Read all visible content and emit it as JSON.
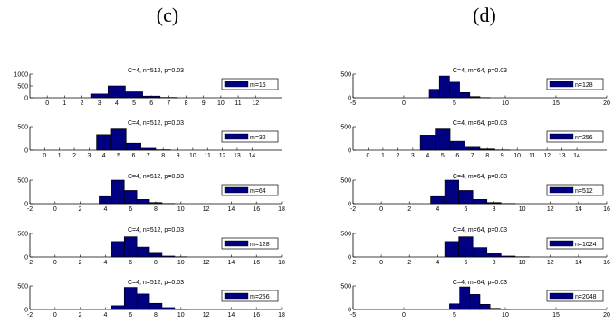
{
  "panel_labels": [
    "(c)",
    "(d)"
  ],
  "chart_data": [
    {
      "type": "bar",
      "group": "(c)",
      "title": "C=4, n=512, p=0.03",
      "legend": "m=16",
      "xlim": [
        -1,
        13.5
      ],
      "ylim": [
        0,
        1000
      ],
      "yticks": [
        "1000",
        "500",
        "0"
      ],
      "yticks_v": [
        1000,
        500,
        0
      ],
      "xticks": [
        "0",
        "1",
        "2",
        "3",
        "4",
        "5",
        "6",
        "7",
        "8",
        "9",
        "10",
        "11",
        "12"
      ],
      "xticks_v": [
        0,
        1,
        2,
        3,
        4,
        5,
        6,
        7,
        8,
        9,
        10,
        11,
        12
      ],
      "bin_width": 1,
      "bins": [
        {
          "x": 3,
          "y": 160
        },
        {
          "x": 4,
          "y": 500
        },
        {
          "x": 5,
          "y": 250
        },
        {
          "x": 6,
          "y": 70
        },
        {
          "x": 7,
          "y": 15
        }
      ]
    },
    {
      "type": "bar",
      "group": "(c)",
      "title": "C=4, n=512, p=0.03",
      "legend": "m=32",
      "xlim": [
        -1,
        16
      ],
      "ylim": [
        0,
        500
      ],
      "yticks": [
        "500",
        "0"
      ],
      "yticks_v": [
        500,
        0
      ],
      "xticks": [
        "0",
        "1",
        "2",
        "3",
        "4",
        "5",
        "6",
        "7",
        "8",
        "9",
        "10",
        "11",
        "12",
        "13",
        "14"
      ],
      "xticks_v": [
        0,
        1,
        2,
        3,
        4,
        5,
        6,
        7,
        8,
        9,
        10,
        11,
        12,
        13,
        14
      ],
      "bin_width": 1,
      "bins": [
        {
          "x": 4,
          "y": 330
        },
        {
          "x": 5,
          "y": 450
        },
        {
          "x": 6,
          "y": 150
        },
        {
          "x": 7,
          "y": 40
        },
        {
          "x": 8,
          "y": 8
        }
      ]
    },
    {
      "type": "bar",
      "group": "(c)",
      "title": "C=4, n=512, p=0.03",
      "legend": "m=64",
      "xlim": [
        -2,
        18
      ],
      "ylim": [
        0,
        500
      ],
      "yticks": [
        "500",
        "0"
      ],
      "yticks_v": [
        500,
        0
      ],
      "xticks": [
        "-2",
        "0",
        "2",
        "4",
        "6",
        "8",
        "10",
        "12",
        "14",
        "16",
        "18"
      ],
      "xticks_v": [
        -2,
        0,
        2,
        4,
        6,
        8,
        10,
        12,
        14,
        16,
        18
      ],
      "bin_width": 1,
      "bins": [
        {
          "x": 4,
          "y": 150
        },
        {
          "x": 5,
          "y": 500
        },
        {
          "x": 6,
          "y": 280
        },
        {
          "x": 7,
          "y": 90
        },
        {
          "x": 8,
          "y": 25
        },
        {
          "x": 9,
          "y": 5
        }
      ]
    },
    {
      "type": "bar",
      "group": "(c)",
      "title": "C=4, n=512, p=0.03",
      "legend": "m=128",
      "xlim": [
        -2,
        18
      ],
      "ylim": [
        0,
        500
      ],
      "yticks": [
        "500",
        "0"
      ],
      "yticks_v": [
        500,
        0
      ],
      "xticks": [
        "-2",
        "0",
        "2",
        "4",
        "6",
        "8",
        "10",
        "12",
        "14",
        "16",
        "18"
      ],
      "xticks_v": [
        -2,
        0,
        2,
        4,
        6,
        8,
        10,
        12,
        14,
        16,
        18
      ],
      "bin_width": 1,
      "bins": [
        {
          "x": 5,
          "y": 330
        },
        {
          "x": 6,
          "y": 430
        },
        {
          "x": 7,
          "y": 210
        },
        {
          "x": 8,
          "y": 80
        },
        {
          "x": 9,
          "y": 20
        },
        {
          "x": 10,
          "y": 5
        }
      ]
    },
    {
      "type": "bar",
      "group": "(c)",
      "title": "C=4, n=512, p=0.03",
      "legend": "m=256",
      "xlim": [
        -2,
        18
      ],
      "ylim": [
        0,
        500
      ],
      "yticks": [
        "500",
        "0"
      ],
      "yticks_v": [
        500,
        0
      ],
      "xticks": [
        "-2",
        "0",
        "2",
        "4",
        "6",
        "8",
        "10",
        "12",
        "14",
        "16",
        "18"
      ],
      "xticks_v": [
        -2,
        0,
        2,
        4,
        6,
        8,
        10,
        12,
        14,
        16,
        18
      ],
      "bin_width": 1,
      "bins": [
        {
          "x": 5,
          "y": 80
        },
        {
          "x": 6,
          "y": 470
        },
        {
          "x": 7,
          "y": 330
        },
        {
          "x": 8,
          "y": 130
        },
        {
          "x": 9,
          "y": 40
        },
        {
          "x": 10,
          "y": 10
        }
      ]
    },
    {
      "type": "bar",
      "group": "(d)",
      "title": "C=4, m=64, p=0.03",
      "legend": "n=128",
      "xlim": [
        -5,
        20
      ],
      "ylim": [
        0,
        500
      ],
      "yticks": [
        "500",
        "0"
      ],
      "yticks_v": [
        500,
        0
      ],
      "xticks": [
        "-5",
        "0",
        "5",
        "10",
        "15",
        "20"
      ],
      "xticks_v": [
        -5,
        0,
        5,
        10,
        15,
        20
      ],
      "bin_width": 1,
      "bins": [
        {
          "x": 3,
          "y": 180
        },
        {
          "x": 4,
          "y": 460
        },
        {
          "x": 5,
          "y": 330
        },
        {
          "x": 6,
          "y": 110
        },
        {
          "x": 7,
          "y": 25
        },
        {
          "x": 8,
          "y": 5
        }
      ]
    },
    {
      "type": "bar",
      "group": "(d)",
      "title": "C=4, m=64, p=0.03",
      "legend": "n=256",
      "xlim": [
        -1,
        16
      ],
      "ylim": [
        0,
        500
      ],
      "yticks": [
        "500",
        "0"
      ],
      "yticks_v": [
        500,
        0
      ],
      "xticks": [
        "0",
        "1",
        "2",
        "3",
        "4",
        "5",
        "6",
        "7",
        "8",
        "9",
        "10",
        "11",
        "12",
        "13",
        "14"
      ],
      "xticks_v": [
        0,
        1,
        2,
        3,
        4,
        5,
        6,
        7,
        8,
        9,
        10,
        11,
        12,
        13,
        14
      ],
      "bin_width": 1,
      "bins": [
        {
          "x": 4,
          "y": 320
        },
        {
          "x": 5,
          "y": 450
        },
        {
          "x": 6,
          "y": 190
        },
        {
          "x": 7,
          "y": 80
        },
        {
          "x": 8,
          "y": 25
        },
        {
          "x": 9,
          "y": 5
        }
      ]
    },
    {
      "type": "bar",
      "group": "(d)",
      "title": "C=4, m=64, p=0.03",
      "legend": "n=512",
      "xlim": [
        -2,
        16
      ],
      "ylim": [
        0,
        500
      ],
      "yticks": [
        "500",
        "0"
      ],
      "yticks_v": [
        500,
        0
      ],
      "xticks": [
        "-2",
        "0",
        "2",
        "4",
        "6",
        "8",
        "10",
        "12",
        "14",
        "16"
      ],
      "xticks_v": [
        -2,
        0,
        2,
        4,
        6,
        8,
        10,
        12,
        14,
        16
      ],
      "bin_width": 1,
      "bins": [
        {
          "x": 4,
          "y": 150
        },
        {
          "x": 5,
          "y": 500
        },
        {
          "x": 6,
          "y": 280
        },
        {
          "x": 7,
          "y": 90
        },
        {
          "x": 8,
          "y": 25
        },
        {
          "x": 9,
          "y": 5
        }
      ]
    },
    {
      "type": "bar",
      "group": "(d)",
      "title": "C=4, m=64, p=0.03",
      "legend": "n=1024",
      "xlim": [
        -2,
        16
      ],
      "ylim": [
        0,
        500
      ],
      "yticks": [
        "500",
        "0"
      ],
      "yticks_v": [
        500,
        0
      ],
      "xticks": [
        "-2",
        "0",
        "2",
        "4",
        "6",
        "8",
        "10",
        "12",
        "14",
        "16"
      ],
      "xticks_v": [
        -2,
        0,
        2,
        4,
        6,
        8,
        10,
        12,
        14,
        16
      ],
      "bin_width": 1,
      "bins": [
        {
          "x": 5,
          "y": 330
        },
        {
          "x": 6,
          "y": 430
        },
        {
          "x": 7,
          "y": 200
        },
        {
          "x": 8,
          "y": 70
        },
        {
          "x": 9,
          "y": 20
        },
        {
          "x": 10,
          "y": 5
        }
      ]
    },
    {
      "type": "bar",
      "group": "(d)",
      "title": "C=4, m=64, p=0.03",
      "legend": "n=2048",
      "xlim": [
        -5,
        20
      ],
      "ylim": [
        0,
        500
      ],
      "yticks": [
        "500",
        "0"
      ],
      "yticks_v": [
        500,
        0
      ],
      "xticks": [
        "-5",
        "0",
        "5",
        "10",
        "15",
        "20"
      ],
      "xticks_v": [
        -5,
        0,
        5,
        10,
        15,
        20
      ],
      "bin_width": 1,
      "bins": [
        {
          "x": 5,
          "y": 120
        },
        {
          "x": 6,
          "y": 480
        },
        {
          "x": 7,
          "y": 320
        },
        {
          "x": 8,
          "y": 110
        },
        {
          "x": 9,
          "y": 25
        },
        {
          "x": 10,
          "y": 5
        }
      ]
    }
  ]
}
